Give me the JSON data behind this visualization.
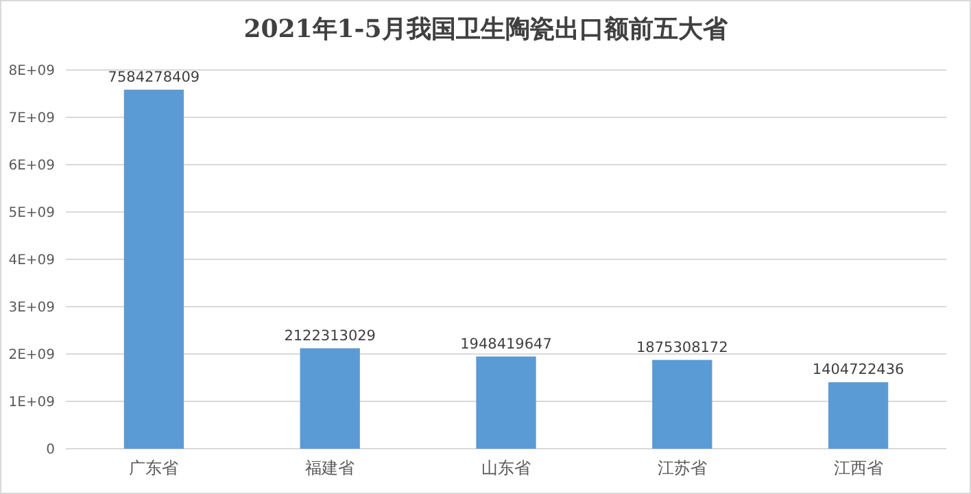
{
  "chart_data": {
    "type": "bar",
    "title": "2021年1-5月我国卫生陶瓷出口额前五大省",
    "categories": [
      "广东省",
      "福建省",
      "山东省",
      "江苏省",
      "江西省"
    ],
    "values": [
      7584278409,
      2122313029,
      1948419647,
      1875308172,
      1404722436
    ],
    "color": "#5b9bd5",
    "ylim": [
      0,
      8000000000
    ],
    "yticks": [
      0,
      {
        "value": 1000000000,
        "label": "1E+09"
      },
      {
        "value": 2000000000,
        "label": "2E+09"
      },
      {
        "value": 3000000000,
        "label": "3E+09"
      },
      {
        "value": 4000000000,
        "label": "4E+09"
      },
      {
        "value": 5000000000,
        "label": "5E+09"
      },
      {
        "value": 6000000000,
        "label": "6E+09"
      },
      {
        "value": 7000000000,
        "label": "7E+09"
      },
      {
        "value": 8000000000,
        "label": "8E+09"
      }
    ],
    "grid": "y",
    "data_labels": true
  }
}
